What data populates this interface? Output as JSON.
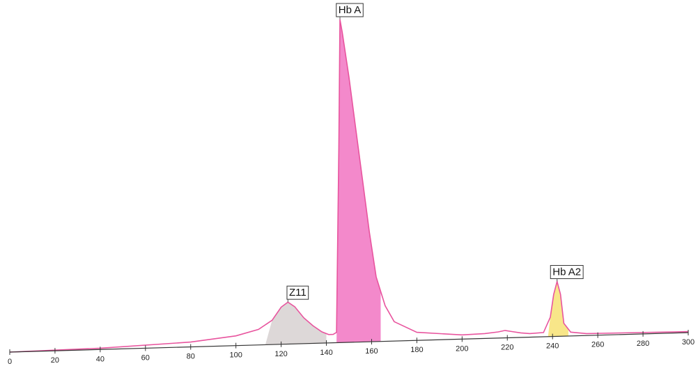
{
  "chart_data": {
    "type": "area",
    "title": "",
    "xlabel": "",
    "ylabel": "",
    "xlim": [
      0,
      300
    ],
    "ylim": [
      0,
      100
    ],
    "x_ticks": [
      0,
      20,
      40,
      60,
      80,
      100,
      120,
      140,
      160,
      180,
      200,
      220,
      240,
      260,
      280,
      300
    ],
    "trace": {
      "x": [
        0,
        40,
        80,
        100,
        110,
        116,
        120,
        123,
        126,
        130,
        134,
        138,
        141,
        143,
        144.5,
        145.5,
        146,
        147,
        150,
        153,
        156,
        159,
        162,
        166,
        170,
        180,
        200,
        210,
        216,
        219,
        222,
        226,
        230,
        236,
        239,
        240.5,
        242,
        243.5,
        245,
        248,
        255,
        270,
        300
      ],
      "y": [
        0,
        0.4,
        1.5,
        3,
        4.8,
        7.5,
        11.5,
        13,
        11.5,
        8,
        5.5,
        3.5,
        2.6,
        2.6,
        3.2,
        60,
        100,
        96,
        82,
        66,
        50,
        34,
        20,
        11,
        6,
        2.5,
        1.3,
        1.5,
        1.9,
        2.3,
        1.9,
        1.4,
        1.1,
        1.3,
        6,
        13,
        17,
        13,
        4,
        1.2,
        0.6,
        0.5,
        0.3
      ],
      "color": "#e8549e"
    },
    "peaks": [
      {
        "label": "Z11",
        "x_start": 113,
        "x_end": 140,
        "fill": "#d9d4d4",
        "apex_x": 123,
        "apex_y": 13
      },
      {
        "label": "Hb A",
        "x_start": 144.5,
        "x_end": 164,
        "fill": "#f27cc5",
        "apex_x": 146,
        "apex_y": 100
      },
      {
        "label": "Hb A2",
        "x_start": 238,
        "x_end": 247,
        "fill": "#f7e37c",
        "apex_x": 242,
        "apex_y": 17
      }
    ]
  }
}
